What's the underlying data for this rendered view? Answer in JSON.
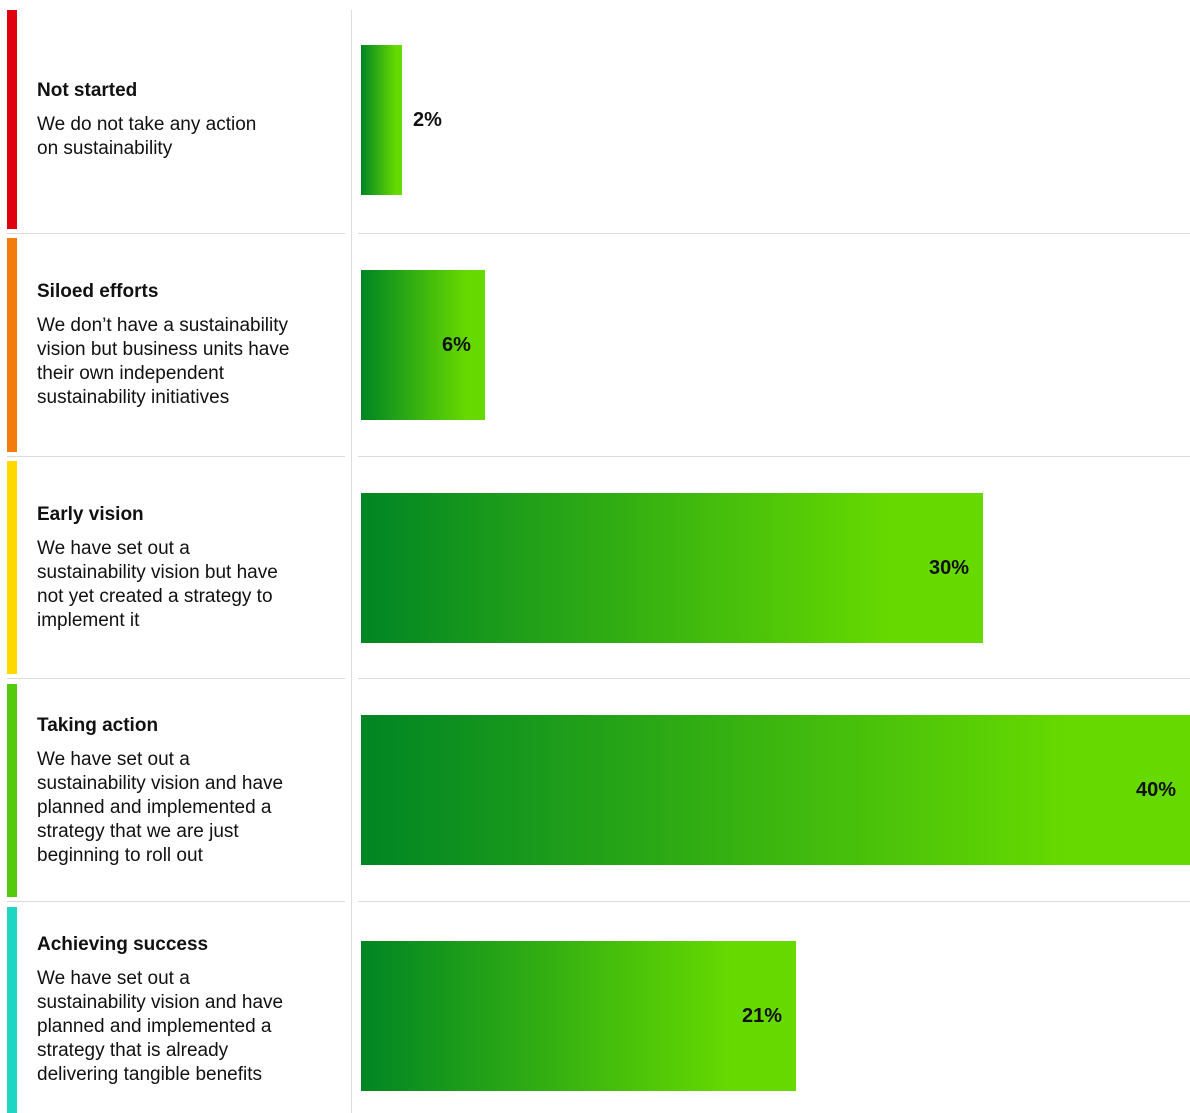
{
  "chart_data": {
    "type": "bar",
    "orientation": "horizontal",
    "categories": [
      "Not started",
      "Siloed efforts",
      "Early vision",
      "Taking action",
      "Achieving success"
    ],
    "descriptions": [
      [
        "We do not take any action",
        "on sustainability"
      ],
      [
        "We don’t have a sustainability",
        "vision but business units have",
        "their own independent",
        "sustainability initiatives"
      ],
      [
        "We have set out a",
        "sustainability vision but have",
        "not yet created a strategy to",
        "implement it"
      ],
      [
        "We have set out a",
        "sustainability vision and have",
        "planned and implemented a",
        "strategy that we are just",
        "beginning to roll out"
      ],
      [
        "We have set out a",
        "sustainability vision and have",
        "planned and implemented a",
        "strategy that is already",
        "delivering tangible benefits"
      ]
    ],
    "values": [
      2,
      6,
      30,
      40,
      21
    ],
    "value_labels": [
      "2%",
      "6%",
      "30%",
      "40%",
      "21%"
    ],
    "unit": "%",
    "xlim": [
      0,
      40
    ],
    "stage_colors": [
      "#e0000f",
      "#f27d0c",
      "#ffd800",
      "#55c90e",
      "#1fd6c4"
    ],
    "bar_gradient": [
      "#008524",
      "#66d900"
    ],
    "grid": false,
    "legend": "none"
  }
}
